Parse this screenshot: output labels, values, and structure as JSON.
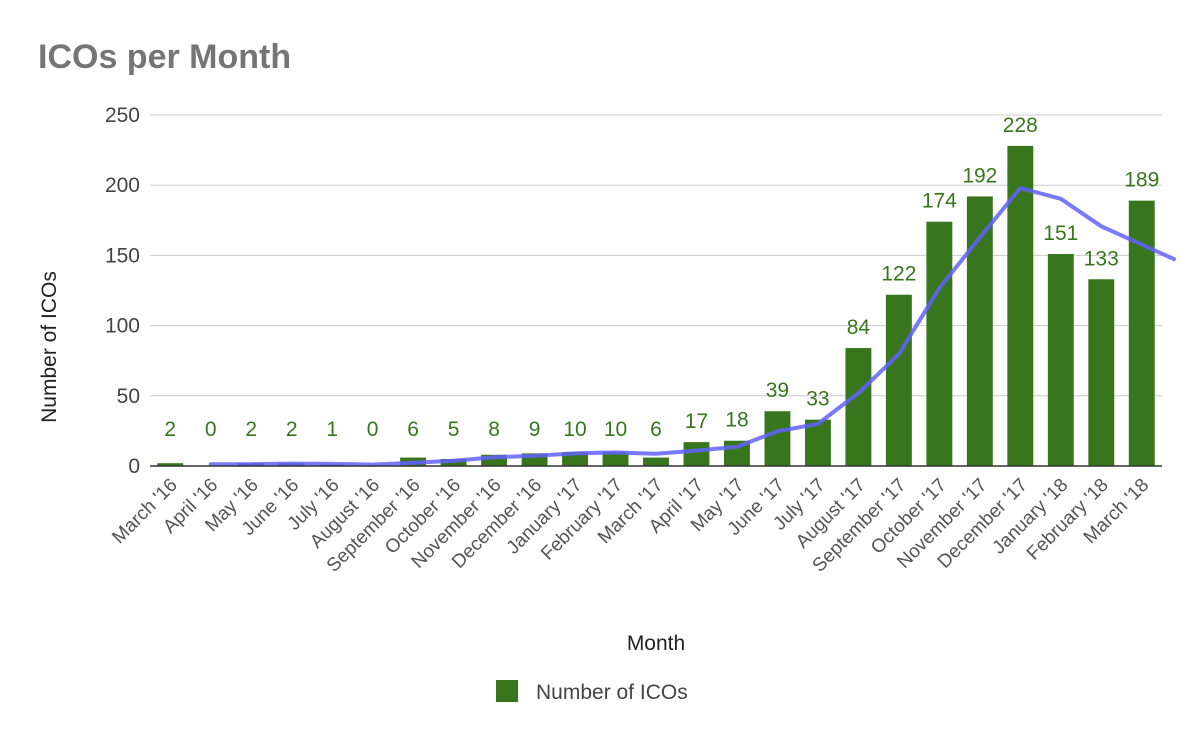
{
  "chart_data": {
    "type": "bar",
    "title": "ICOs per Month",
    "xlabel": "Month",
    "ylabel": "Number of ICOs",
    "ylim": [
      0,
      250
    ],
    "yticks": [
      0,
      50,
      100,
      150,
      200,
      250
    ],
    "grid": true,
    "legend_position": "bottom",
    "categories": [
      "March '16",
      "April '16",
      "May '16",
      "June '16",
      "July '16",
      "August '16",
      "September '16",
      "October '16",
      "November '16",
      "December '16",
      "January '17",
      "February '17",
      "March '17",
      "April '17",
      "May '17",
      "June '17",
      "July '17",
      "August '17",
      "September '17",
      "October '17",
      "November '17",
      "December '17",
      "January '18",
      "February '18",
      "March '18"
    ],
    "series": [
      {
        "name": "Number of ICOs",
        "type": "bar",
        "color": "#38761d",
        "values": [
          2,
          0,
          2,
          2,
          1,
          0,
          6,
          5,
          8,
          9,
          10,
          10,
          6,
          17,
          18,
          39,
          33,
          84,
          122,
          174,
          192,
          228,
          151,
          133,
          189
        ]
      },
      {
        "type": "line",
        "color": "#6161ff",
        "values": [
          null,
          1.3,
          1.3,
          1.7,
          1.5,
          1.0,
          2.3,
          3.7,
          6.3,
          7.3,
          9.0,
          9.7,
          8.7,
          11.0,
          13.7,
          24.7,
          30.0,
          52.0,
          79.7,
          126.7,
          162.7,
          198.0,
          190.3,
          170.7,
          157.7
        ]
      }
    ]
  }
}
